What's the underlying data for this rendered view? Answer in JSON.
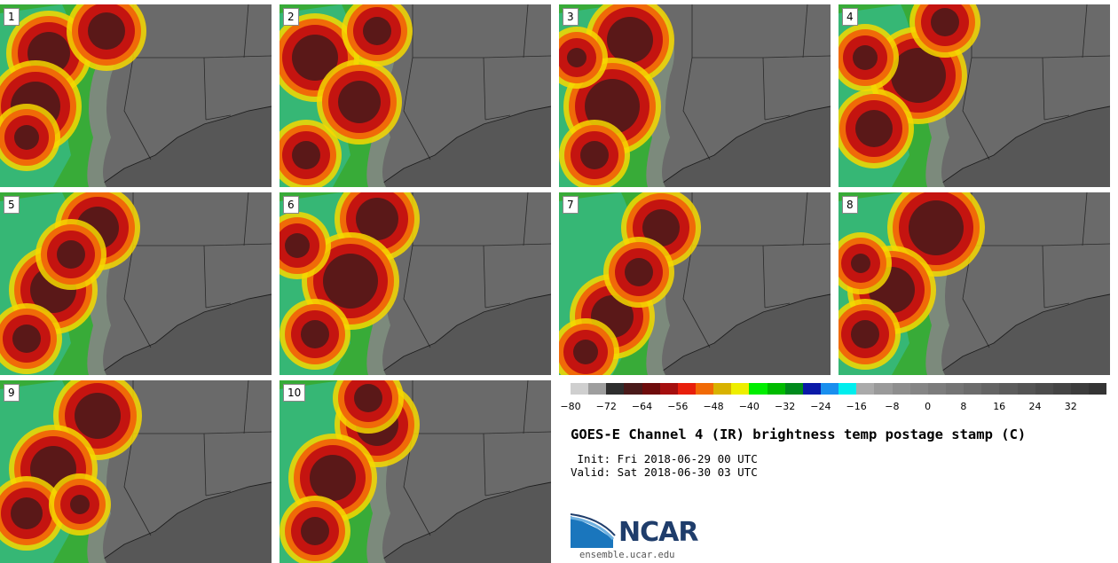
{
  "panels": [
    {
      "label": "1",
      "wind": [
        [
          55,
          55,
          38
        ],
        [
          40,
          115,
          42
        ],
        [
          30,
          150,
          28
        ],
        [
          120,
          30,
          35
        ]
      ]
    },
    {
      "label": "2",
      "wind": [
        [
          40,
          60,
          40
        ],
        [
          90,
          110,
          38
        ],
        [
          30,
          170,
          30
        ],
        [
          110,
          30,
          30
        ]
      ]
    },
    {
      "label": "3",
      "wind": [
        [
          80,
          40,
          40
        ],
        [
          60,
          115,
          45
        ],
        [
          40,
          170,
          30
        ],
        [
          20,
          60,
          25
        ]
      ]
    },
    {
      "label": "4",
      "wind": [
        [
          90,
          80,
          45
        ],
        [
          40,
          140,
          35
        ],
        [
          120,
          20,
          30
        ],
        [
          30,
          60,
          28
        ]
      ]
    },
    {
      "label": "5",
      "wind": [
        [
          110,
          40,
          38
        ],
        [
          60,
          110,
          40
        ],
        [
          30,
          165,
          30
        ],
        [
          80,
          70,
          30
        ]
      ]
    },
    {
      "label": "6",
      "wind": [
        [
          110,
          30,
          38
        ],
        [
          80,
          100,
          45
        ],
        [
          40,
          160,
          30
        ],
        [
          20,
          60,
          28
        ]
      ]
    },
    {
      "label": "7",
      "wind": [
        [
          115,
          40,
          35
        ],
        [
          60,
          140,
          38
        ],
        [
          30,
          180,
          28
        ],
        [
          90,
          90,
          30
        ]
      ]
    },
    {
      "label": "8",
      "wind": [
        [
          110,
          40,
          45
        ],
        [
          60,
          110,
          40
        ],
        [
          30,
          160,
          30
        ],
        [
          25,
          80,
          25
        ]
      ]
    },
    {
      "label": "9",
      "wind": [
        [
          110,
          40,
          40
        ],
        [
          60,
          100,
          40
        ],
        [
          30,
          150,
          32
        ],
        [
          90,
          140,
          25
        ]
      ]
    },
    {
      "label": "10",
      "wind": [
        [
          110,
          50,
          38
        ],
        [
          60,
          110,
          40
        ],
        [
          40,
          170,
          30
        ],
        [
          100,
          20,
          30
        ]
      ]
    }
  ],
  "colorbar": {
    "colors": [
      "#cfcfcf",
      "#9e9e9e",
      "#2e2e2e",
      "#4a1a1a",
      "#6e0c0c",
      "#a50f0f",
      "#e81f0c",
      "#f16a06",
      "#d8b200",
      "#eeee00",
      "#00ee00",
      "#00bb00",
      "#008a1c",
      "#0a1aa8",
      "#1a8fee",
      "#00eeee",
      "#aaaaaa",
      "#9a9a9a",
      "#8e8e8e",
      "#858585",
      "#7c7c7c",
      "#747474",
      "#6c6c6c",
      "#646464",
      "#5c5c5c",
      "#545454",
      "#4c4c4c",
      "#444444",
      "#3c3c3c",
      "#343434"
    ],
    "ticks": [
      "−80",
      "−72",
      "−64",
      "−56",
      "−48",
      "−40",
      "−32",
      "−24",
      "−16",
      "−8",
      "0",
      "8",
      "16",
      "24",
      "32"
    ],
    "range": [
      -80,
      40
    ]
  },
  "title": "GOES-E Channel 4 (IR) brightness temp postage stamp (C)",
  "init_line": " Init: Fri 2018-06-29 00 UTC",
  "valid_line": "Valid: Sat 2018-06-30 03 UTC",
  "logo": {
    "brand": "NCAR",
    "url": "ensemble.ucar.edu"
  }
}
